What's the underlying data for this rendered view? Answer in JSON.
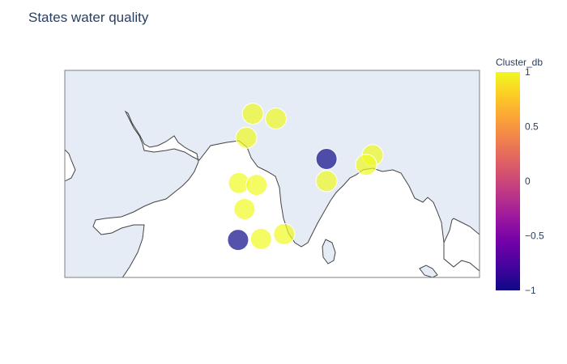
{
  "title": "States water quality",
  "colorbar": {
    "title": "Cluster_db",
    "range": [
      -1,
      1
    ],
    "ticks": [
      "1",
      "0.5",
      "0",
      "−0.5",
      "−1"
    ],
    "tick_values": [
      1,
      0.5,
      0,
      -0.5,
      -1
    ],
    "colors": [
      "#0d0887",
      "#46039f",
      "#7201a8",
      "#9c179e",
      "#bd3786",
      "#d8576b",
      "#ed7953",
      "#fb9f3a",
      "#fdca26",
      "#f0f921"
    ]
  },
  "map": {
    "land_color": "#e5ecf6",
    "coastline_color": "#444444",
    "frame_color": "#7f7f7f",
    "lon_range": [
      58.5,
      103.5
    ],
    "lat_range": [
      5.5,
      27.0
    ]
  },
  "chart_data": {
    "type": "scatter",
    "title": "States water quality",
    "color_variable": "Cluster_db",
    "points": [
      {
        "lon": 78.9,
        "lat": 22.5,
        "value": 1
      },
      {
        "lon": 81.4,
        "lat": 22.0,
        "value": 1
      },
      {
        "lon": 78.2,
        "lat": 20.0,
        "value": 1
      },
      {
        "lon": 86.9,
        "lat": 17.8,
        "value": -1
      },
      {
        "lon": 91.9,
        "lat": 18.2,
        "value": 1
      },
      {
        "lon": 91.2,
        "lat": 17.2,
        "value": 1
      },
      {
        "lon": 77.4,
        "lat": 15.3,
        "value": 1
      },
      {
        "lon": 79.3,
        "lat": 15.1,
        "value": 1
      },
      {
        "lon": 86.9,
        "lat": 15.5,
        "value": 1
      },
      {
        "lon": 78.0,
        "lat": 12.6,
        "value": 1
      },
      {
        "lon": 77.3,
        "lat": 9.4,
        "value": -1
      },
      {
        "lon": 79.8,
        "lat": 9.5,
        "value": 1
      },
      {
        "lon": 82.3,
        "lat": 10.0,
        "value": 1
      }
    ]
  }
}
